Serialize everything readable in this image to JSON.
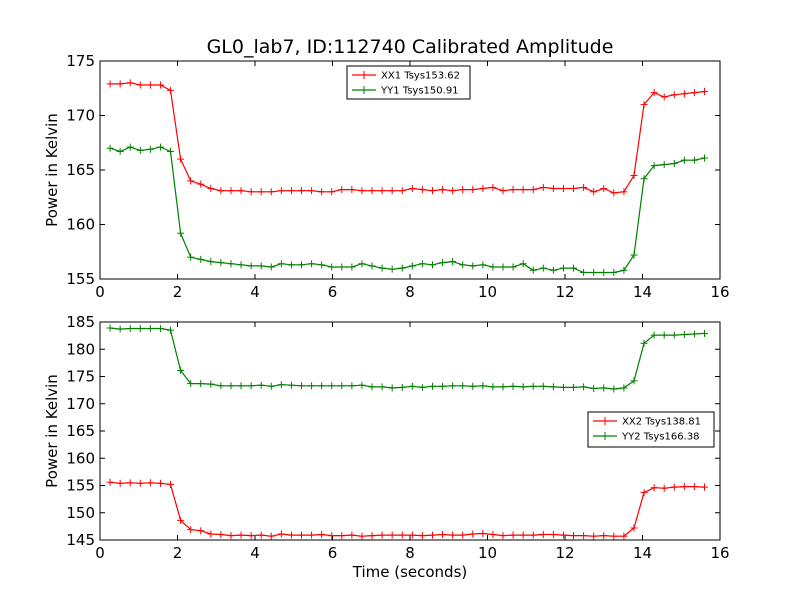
{
  "figure": {
    "title": "GL0_lab7, ID:112740 Calibrated Amplitude",
    "xlabel": "Time (seconds)"
  },
  "chart_data": [
    {
      "type": "line",
      "ylabel": "Power in Kelvin",
      "xlim": [
        0,
        16
      ],
      "ylim": [
        155,
        175
      ],
      "xticks": [
        0,
        2,
        4,
        6,
        8,
        10,
        12,
        14,
        16
      ],
      "yticks": [
        155,
        160,
        165,
        170,
        175
      ],
      "grid": false,
      "legend": "top-center",
      "x": [
        0.26,
        0.52,
        0.78,
        1.04,
        1.3,
        1.56,
        1.82,
        2.08,
        2.34,
        2.6,
        2.86,
        3.12,
        3.38,
        3.64,
        3.9,
        4.16,
        4.42,
        4.68,
        4.94,
        5.2,
        5.46,
        5.72,
        5.98,
        6.24,
        6.5,
        6.76,
        7.02,
        7.28,
        7.54,
        7.8,
        8.06,
        8.32,
        8.58,
        8.84,
        9.1,
        9.36,
        9.62,
        9.88,
        10.14,
        10.4,
        10.66,
        10.92,
        11.18,
        11.44,
        11.7,
        11.96,
        12.22,
        12.48,
        12.74,
        13.0,
        13.26,
        13.52,
        13.78,
        14.04,
        14.3,
        14.56,
        14.82,
        15.08,
        15.34,
        15.6
      ],
      "series": [
        {
          "name": "XX1 Tsys153.62",
          "color": "#ff0000",
          "values": [
            172.9,
            172.9,
            173.0,
            172.8,
            172.8,
            172.8,
            172.3,
            166.0,
            164.0,
            163.7,
            163.3,
            163.1,
            163.1,
            163.1,
            163.0,
            163.0,
            163.0,
            163.1,
            163.1,
            163.1,
            163.1,
            163.0,
            163.0,
            163.2,
            163.2,
            163.1,
            163.1,
            163.1,
            163.1,
            163.1,
            163.3,
            163.2,
            163.1,
            163.2,
            163.1,
            163.2,
            163.2,
            163.3,
            163.4,
            163.1,
            163.2,
            163.2,
            163.2,
            163.4,
            163.3,
            163.3,
            163.3,
            163.4,
            163.0,
            163.3,
            162.9,
            163.0,
            164.5,
            171.0,
            172.1,
            171.7,
            171.9,
            172.0,
            172.1,
            172.2
          ]
        },
        {
          "name": "YY1 Tsys150.91",
          "color": "#008000",
          "values": [
            167.0,
            166.7,
            167.1,
            166.8,
            166.9,
            167.1,
            166.7,
            159.2,
            157.0,
            156.8,
            156.6,
            156.5,
            156.4,
            156.3,
            156.2,
            156.2,
            156.1,
            156.4,
            156.3,
            156.3,
            156.4,
            156.3,
            156.1,
            156.1,
            156.1,
            156.4,
            156.2,
            156.0,
            155.9,
            156.0,
            156.2,
            156.4,
            156.3,
            156.5,
            156.6,
            156.3,
            156.2,
            156.3,
            156.1,
            156.1,
            156.1,
            156.4,
            155.8,
            156.0,
            155.8,
            156.0,
            156.0,
            155.6,
            155.6,
            155.6,
            155.6,
            155.8,
            157.2,
            164.2,
            165.4,
            165.5,
            165.6,
            165.9,
            165.9,
            166.1
          ]
        }
      ]
    },
    {
      "type": "line",
      "ylabel": "Power in Kelvin",
      "xlabel": "Time (seconds)",
      "xlim": [
        0,
        16
      ],
      "ylim": [
        145,
        185
      ],
      "xticks": [
        0,
        2,
        4,
        6,
        8,
        10,
        12,
        14,
        16
      ],
      "yticks": [
        145,
        150,
        155,
        160,
        165,
        170,
        175,
        180,
        185
      ],
      "grid": false,
      "legend": "center-right",
      "x": [
        0.26,
        0.52,
        0.78,
        1.04,
        1.3,
        1.56,
        1.82,
        2.08,
        2.34,
        2.6,
        2.86,
        3.12,
        3.38,
        3.64,
        3.9,
        4.16,
        4.42,
        4.68,
        4.94,
        5.2,
        5.46,
        5.72,
        5.98,
        6.24,
        6.5,
        6.76,
        7.02,
        7.28,
        7.54,
        7.8,
        8.06,
        8.32,
        8.58,
        8.84,
        9.1,
        9.36,
        9.62,
        9.88,
        10.14,
        10.4,
        10.66,
        10.92,
        11.18,
        11.44,
        11.7,
        11.96,
        12.22,
        12.48,
        12.74,
        13.0,
        13.26,
        13.52,
        13.78,
        14.04,
        14.3,
        14.56,
        14.82,
        15.08,
        15.34,
        15.6
      ],
      "series": [
        {
          "name": "XX2 Tsys138.81",
          "color": "#ff0000",
          "values": [
            155.6,
            155.4,
            155.5,
            155.4,
            155.5,
            155.4,
            155.2,
            148.6,
            146.9,
            146.7,
            146.1,
            146.0,
            145.8,
            145.9,
            145.8,
            145.9,
            145.7,
            146.1,
            145.9,
            145.9,
            145.9,
            146.0,
            145.8,
            145.8,
            145.9,
            145.7,
            145.8,
            145.9,
            145.9,
            145.9,
            145.9,
            145.8,
            145.9,
            146.0,
            145.9,
            145.9,
            146.1,
            146.2,
            146.0,
            145.8,
            145.9,
            145.9,
            145.9,
            146.0,
            146.0,
            145.9,
            145.8,
            145.8,
            145.7,
            145.8,
            145.7,
            145.7,
            147.2,
            153.7,
            154.6,
            154.5,
            154.7,
            154.8,
            154.8,
            154.7
          ]
        },
        {
          "name": "YY2 Tsys166.38",
          "color": "#008000",
          "values": [
            183.9,
            183.7,
            183.8,
            183.8,
            183.8,
            183.8,
            183.5,
            176.1,
            173.7,
            173.7,
            173.6,
            173.3,
            173.3,
            173.3,
            173.3,
            173.4,
            173.2,
            173.5,
            173.4,
            173.3,
            173.3,
            173.3,
            173.3,
            173.3,
            173.3,
            173.4,
            173.1,
            173.1,
            172.9,
            173.0,
            173.2,
            173.0,
            173.2,
            173.2,
            173.3,
            173.3,
            173.2,
            173.3,
            173.1,
            173.1,
            173.2,
            173.1,
            173.2,
            173.2,
            173.1,
            173.0,
            173.0,
            173.1,
            172.8,
            172.9,
            172.7,
            172.9,
            174.2,
            181.1,
            182.6,
            182.6,
            182.6,
            182.7,
            182.8,
            182.9
          ]
        }
      ]
    }
  ]
}
